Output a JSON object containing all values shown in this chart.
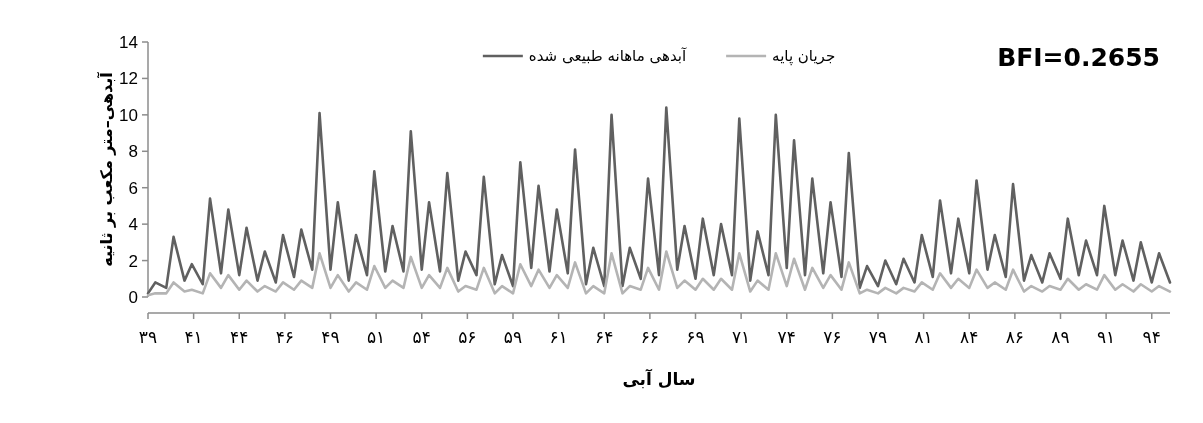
{
  "chart_data": {
    "type": "line",
    "x": [
      39,
      39.4,
      40,
      40.4,
      41,
      41.4,
      42,
      42.4,
      43,
      43.4,
      44,
      44.4,
      45,
      45.4,
      46,
      46.4,
      47,
      47.4,
      48,
      48.4,
      49,
      49.4,
      50,
      50.4,
      51,
      51.4,
      52,
      52.4,
      53,
      53.4,
      54,
      54.4,
      55,
      55.4,
      56,
      56.4,
      57,
      57.4,
      58,
      58.4,
      59,
      59.4,
      60,
      60.4,
      61,
      61.4,
      62,
      62.4,
      63,
      63.4,
      64,
      64.4,
      65,
      65.4,
      66,
      66.4,
      67,
      67.4,
      68,
      68.4,
      69,
      69.4,
      70,
      70.4,
      71,
      71.4,
      72,
      72.4,
      73,
      73.4,
      74,
      74.4,
      75,
      75.4,
      76,
      76.4,
      77,
      77.4,
      78,
      78.4,
      79,
      79.4,
      80,
      80.4,
      81,
      81.4,
      82,
      82.4,
      83,
      83.4,
      84,
      84.4,
      85,
      85.4,
      86,
      86.4,
      87,
      87.4,
      88,
      88.4,
      89,
      89.4,
      90,
      90.4,
      91,
      91.4,
      92,
      92.4,
      93,
      93.4,
      94,
      94.4,
      95
    ],
    "series": [
      {
        "name": "آبدهی ماهانه طبیعی شده",
        "color": "#606060",
        "values": [
          0.2,
          0.8,
          0.5,
          3.3,
          0.9,
          1.8,
          0.7,
          5.4,
          1.3,
          4.8,
          1.2,
          3.8,
          0.9,
          2.5,
          0.8,
          3.4,
          1.1,
          3.7,
          1.5,
          10.1,
          1.5,
          5.2,
          0.9,
          3.4,
          1.2,
          6.9,
          1.4,
          3.9,
          1.4,
          9.1,
          1.5,
          5.2,
          1.4,
          6.8,
          0.9,
          2.5,
          1.2,
          6.6,
          0.7,
          2.3,
          0.6,
          7.4,
          1.6,
          6.1,
          1.4,
          4.8,
          1.3,
          8.1,
          0.7,
          2.7,
          0.6,
          10.0,
          0.6,
          2.7,
          1.0,
          6.5,
          1.2,
          10.4,
          1.5,
          3.9,
          1.0,
          4.3,
          1.2,
          4.0,
          1.2,
          9.8,
          0.9,
          3.6,
          1.2,
          10.0,
          1.6,
          8.6,
          1.2,
          6.5,
          1.3,
          5.2,
          1.1,
          7.9,
          0.5,
          1.7,
          0.6,
          2.0,
          0.7,
          2.1,
          0.8,
          3.4,
          1.1,
          5.3,
          1.3,
          4.3,
          1.3,
          6.4,
          1.5,
          3.4,
          1.1,
          6.2,
          0.9,
          2.3,
          0.8,
          2.4,
          1.0,
          4.3,
          1.2,
          3.1,
          1.2,
          5.0,
          1.2,
          3.1,
          0.9,
          3.0,
          0.8,
          2.4,
          0.8
        ]
      },
      {
        "name": "جریان پایه",
        "color": "#b4b4b4",
        "values": [
          0.1,
          0.2,
          0.2,
          0.8,
          0.3,
          0.4,
          0.2,
          1.3,
          0.5,
          1.2,
          0.4,
          0.9,
          0.3,
          0.6,
          0.3,
          0.8,
          0.4,
          0.9,
          0.5,
          2.4,
          0.5,
          1.2,
          0.3,
          0.8,
          0.4,
          1.7,
          0.5,
          0.9,
          0.5,
          2.2,
          0.5,
          1.2,
          0.5,
          1.6,
          0.3,
          0.6,
          0.4,
          1.6,
          0.2,
          0.6,
          0.2,
          1.8,
          0.6,
          1.5,
          0.5,
          1.2,
          0.5,
          1.9,
          0.2,
          0.6,
          0.2,
          2.4,
          0.2,
          0.6,
          0.4,
          1.6,
          0.4,
          2.5,
          0.5,
          0.9,
          0.4,
          1.0,
          0.4,
          1.0,
          0.4,
          2.4,
          0.3,
          0.9,
          0.4,
          2.4,
          0.6,
          2.1,
          0.4,
          1.6,
          0.5,
          1.2,
          0.4,
          1.9,
          0.2,
          0.4,
          0.2,
          0.5,
          0.2,
          0.5,
          0.3,
          0.8,
          0.4,
          1.3,
          0.5,
          1.0,
          0.5,
          1.5,
          0.5,
          0.8,
          0.4,
          1.5,
          0.3,
          0.6,
          0.3,
          0.6,
          0.4,
          1.0,
          0.4,
          0.7,
          0.4,
          1.2,
          0.4,
          0.7,
          0.3,
          0.7,
          0.3,
          0.6,
          0.3
        ]
      }
    ],
    "xlim": [
      39,
      95
    ],
    "xticks": [
      {
        "value": 39,
        "label": "۳۹"
      },
      {
        "value": 41.5,
        "label": "۴۱"
      },
      {
        "value": 44,
        "label": "۴۴"
      },
      {
        "value": 46.5,
        "label": "۴۶"
      },
      {
        "value": 49,
        "label": "۴۹"
      },
      {
        "value": 51.5,
        "label": "۵۱"
      },
      {
        "value": 54,
        "label": "۵۴"
      },
      {
        "value": 56.5,
        "label": "۵۶"
      },
      {
        "value": 59,
        "label": "۵۹"
      },
      {
        "value": 61.5,
        "label": "۶۱"
      },
      {
        "value": 64,
        "label": "۶۴"
      },
      {
        "value": 66.5,
        "label": "۶۶"
      },
      {
        "value": 69,
        "label": "۶۹"
      },
      {
        "value": 71.5,
        "label": "۷۱"
      },
      {
        "value": 74,
        "label": "۷۴"
      },
      {
        "value": 76.5,
        "label": "۷۶"
      },
      {
        "value": 79,
        "label": "۷۹"
      },
      {
        "value": 81.5,
        "label": "۸۱"
      },
      {
        "value": 84,
        "label": "۸۴"
      },
      {
        "value": 86.5,
        "label": "۸۶"
      },
      {
        "value": 89,
        "label": "۸۹"
      },
      {
        "value": 91.5,
        "label": "۹۱"
      },
      {
        "value": 94,
        "label": "۹۴"
      }
    ],
    "ylim": [
      0,
      14
    ],
    "yticks": [
      0,
      2,
      4,
      6,
      8,
      10,
      12,
      14
    ],
    "xlabel": "سال آبی",
    "ylabel": "آبدهی–متر مکعب بر ثانیه",
    "legend": "top",
    "annotations": [
      "BFI=0.2655"
    ]
  }
}
